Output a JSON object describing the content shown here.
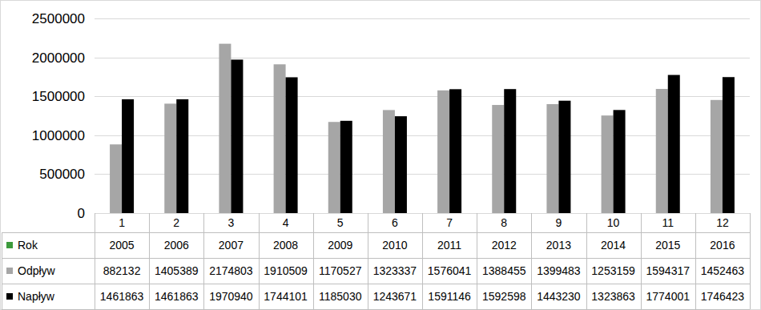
{
  "chart_data": {
    "type": "bar",
    "categories": [
      "1",
      "2",
      "3",
      "4",
      "5",
      "6",
      "7",
      "8",
      "9",
      "10",
      "11",
      "12"
    ],
    "years": {
      "name": "Rok",
      "color": "#3c9a3c",
      "values": [
        2005,
        2006,
        2007,
        2008,
        2009,
        2010,
        2011,
        2012,
        2013,
        2014,
        2015,
        2016
      ]
    },
    "series": [
      {
        "name": "Odpływ",
        "color": "#a6a6a6",
        "values": [
          882132,
          1405389,
          2174803,
          1910509,
          1170527,
          1323337,
          1576041,
          1388455,
          1399483,
          1253159,
          1594317,
          1452463
        ]
      },
      {
        "name": "Napływ",
        "color": "#000000",
        "values": [
          1461863,
          1461863,
          1970940,
          1744101,
          1185030,
          1243671,
          1591146,
          1592598,
          1443230,
          1323863,
          1774001,
          1746423
        ]
      }
    ],
    "ylim": [
      0,
      2500000
    ],
    "yticks": [
      0,
      500000,
      1000000,
      1500000,
      2000000,
      2500000
    ],
    "grid": true
  }
}
